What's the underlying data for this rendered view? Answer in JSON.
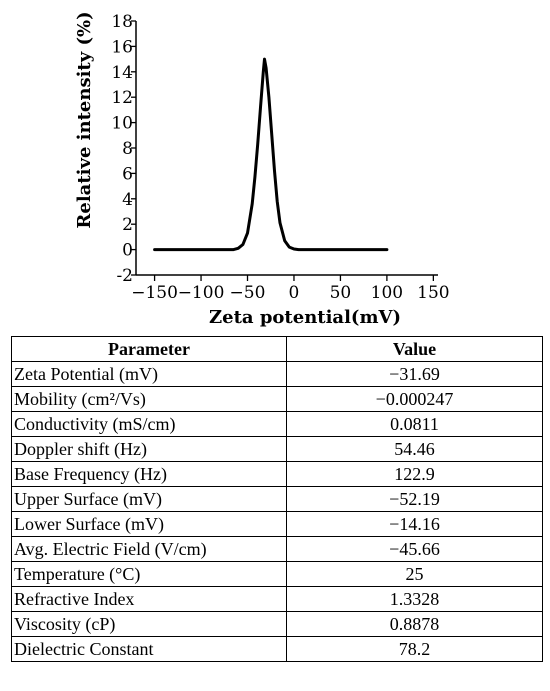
{
  "chart_data": {
    "type": "line",
    "title": "",
    "xlabel": "Zeta potential(mV)",
    "ylabel": "Relative intensity (%)",
    "xlim": [
      -170,
      155
    ],
    "ylim": [
      -2,
      18
    ],
    "x_ticks": [
      -150,
      -100,
      -50,
      0,
      50,
      100,
      150
    ],
    "x_tick_labels": [
      "−150",
      "−100",
      "−50",
      "0",
      "50",
      "100",
      "150"
    ],
    "y_ticks": [
      -2,
      0,
      2,
      4,
      6,
      8,
      10,
      12,
      14,
      16,
      18
    ],
    "y_tick_labels": [
      "-2",
      "0",
      "2",
      "4",
      "6",
      "8",
      "10",
      "12",
      "14",
      "16",
      "18"
    ],
    "grid": false,
    "series": [
      {
        "x": [
          -150,
          -80,
          -65,
          -60,
          -55,
          -50,
          -45,
          -42,
          -39,
          -36,
          -33,
          -31.7,
          -30,
          -27,
          -24,
          -21,
          -18,
          -15,
          -10,
          -5,
          0,
          5,
          10,
          50,
          100
        ],
        "y": [
          0,
          0,
          0,
          0.1,
          0.4,
          1.3,
          3.6,
          5.7,
          8.3,
          11.2,
          14,
          15,
          14.3,
          12,
          9.1,
          6.2,
          3.8,
          2.1,
          0.7,
          0.2,
          0.05,
          0,
          0,
          0,
          0
        ]
      }
    ]
  },
  "table": {
    "headers": [
      "Parameter",
      "Value"
    ],
    "rows": [
      [
        "Zeta Potential (mV)",
        "−31.69"
      ],
      [
        "Mobility (cm²/Vs)",
        "−0.000247"
      ],
      [
        "Conductivity (mS/cm)",
        "0.0811"
      ],
      [
        "Doppler shift (Hz)",
        "54.46"
      ],
      [
        "Base Frequency (Hz)",
        "122.9"
      ],
      [
        "Upper Surface (mV)",
        "−52.19"
      ],
      [
        "Lower Surface (mV)",
        "−14.16"
      ],
      [
        "Avg. Electric Field (V/cm)",
        "−45.66"
      ],
      [
        "Temperature (°C)",
        "25"
      ],
      [
        "Refractive Index",
        "1.3328"
      ],
      [
        "Viscosity (cP)",
        "0.8878"
      ],
      [
        "Dielectric Constant",
        "78.2"
      ]
    ]
  }
}
